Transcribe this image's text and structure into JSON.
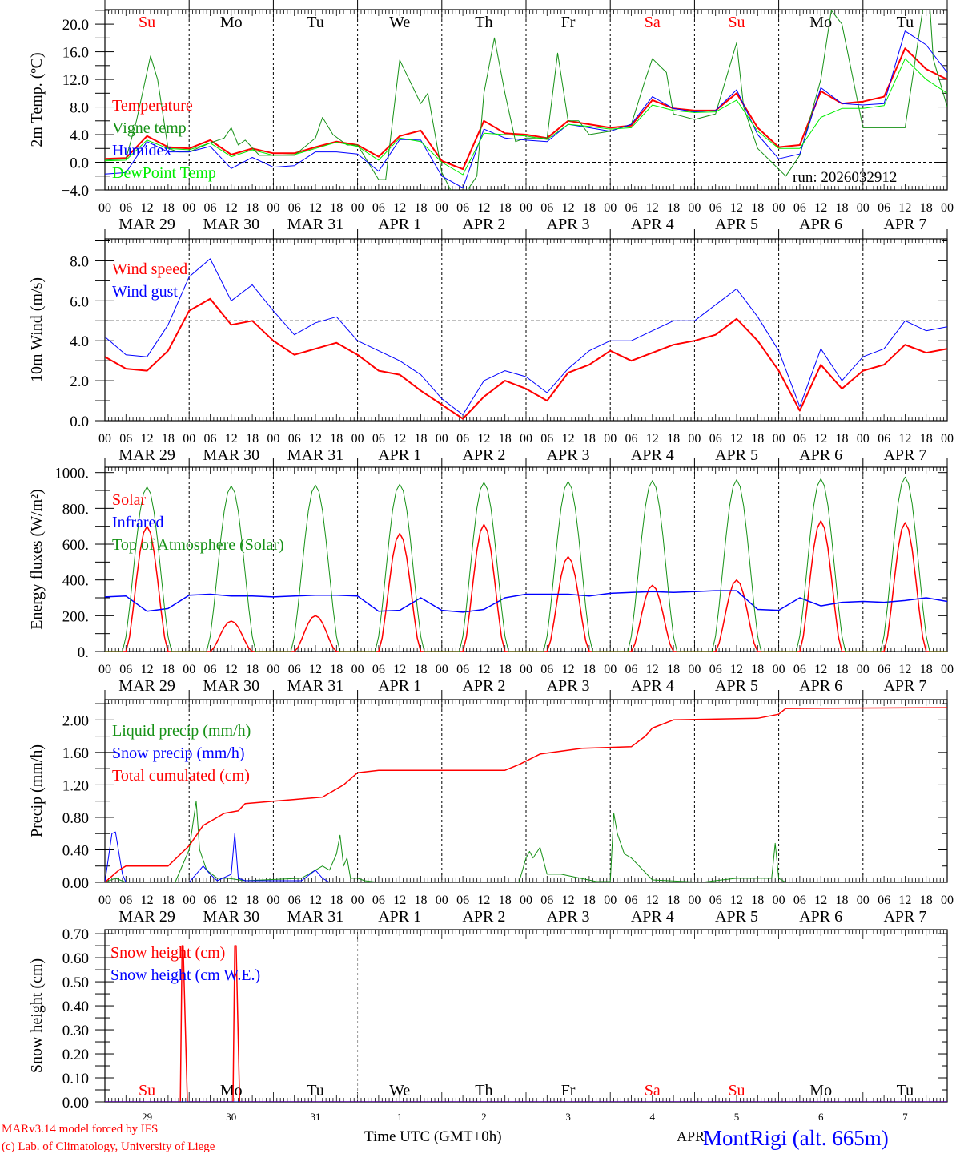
{
  "footer": {
    "model": "MARv3.14 model forced by IFS",
    "credit": "(c) Lab. of Climatology, University of Liege",
    "xlabel": "Time UTC (GMT+0h)",
    "month": "APR",
    "station": "MontRigi (alt. 665m)",
    "run": "run: 2026032912"
  },
  "days": {
    "names": [
      "Su",
      "Mo",
      "Tu",
      "We",
      "Th",
      "Fr",
      "Sa",
      "Su",
      "Mo",
      "Tu"
    ],
    "weekend": [
      true,
      false,
      false,
      false,
      false,
      false,
      true,
      true,
      false,
      false
    ],
    "dates": [
      "MAR 29",
      "MAR 30",
      "MAR 31",
      "APR  1",
      "APR  2",
      "APR  3",
      "APR  4",
      "APR  5",
      "APR  6",
      "APR  7"
    ],
    "day_numbers": [
      "29",
      "30",
      "31",
      "1",
      "2",
      "3",
      "4",
      "5",
      "6",
      "7"
    ],
    "hours": [
      "00",
      "06",
      "12",
      "18"
    ],
    "end_hour": "00"
  },
  "colors": {
    "red": "#ff0000",
    "darkgreen": "#169116",
    "blue": "#0000ff",
    "lightgreen": "#00ee00"
  },
  "chart_data": [
    {
      "type": "line",
      "ylabel": "2m Temp. (ºC)",
      "ylim": [
        -4,
        22.1
      ],
      "xlim_hours": [
        0,
        240
      ],
      "yticks": [
        -4,
        0,
        4,
        8,
        12,
        16,
        20
      ],
      "ytick_labels": [
        "−4.0",
        "0.0",
        "4.0",
        "8.0",
        "12.0",
        "16.0",
        "20.0"
      ],
      "yminor": 2,
      "hline": 0,
      "series": [
        {
          "name": "Temperature",
          "color": "#ff0000",
          "width": 2,
          "step_hours": 6,
          "values": [
            0.5,
            0.6,
            3.8,
            2.2,
            2.0,
            3.2,
            1.1,
            2.0,
            1.3,
            1.3,
            2.2,
            3.0,
            2.5,
            0.8,
            3.8,
            4.6,
            0.2,
            -1.0,
            6.0,
            4.2,
            4.0,
            3.5,
            6.0,
            5.5,
            5.0,
            5.3,
            9.0,
            7.8,
            7.5,
            7.5,
            10.0,
            5.0,
            2.2,
            2.5,
            10.3,
            8.5,
            8.8,
            9.5,
            16.5,
            13.5,
            12.0
          ]
        },
        {
          "name": "Vigne temp",
          "color": "#169116",
          "width": 1,
          "x": [
            0,
            6,
            9,
            13,
            15,
            18,
            21,
            24,
            30,
            34,
            36,
            38,
            40,
            44,
            48,
            54,
            60,
            62,
            65,
            69,
            72,
            78,
            80,
            84,
            90,
            92,
            96,
            99,
            102,
            106,
            108,
            111,
            114,
            117,
            120,
            126,
            129,
            132,
            135,
            138,
            144,
            150,
            154,
            156,
            160,
            162,
            168,
            174,
            180,
            182,
            186,
            190,
            194,
            198,
            204,
            207,
            210,
            216,
            222,
            228,
            233,
            235,
            236,
            240
          ],
          "y": [
            0.3,
            0.5,
            6,
            15.4,
            12,
            2,
            1.5,
            1.5,
            2.8,
            3.5,
            5,
            2.5,
            3.2,
            1,
            1,
            1,
            3.5,
            6.5,
            4,
            2.5,
            2.5,
            -2.5,
            -2.5,
            14.8,
            8.5,
            10,
            -1.5,
            -4.5,
            -5.0,
            -2.0,
            10,
            18,
            10,
            3.0,
            3.5,
            3.5,
            15.8,
            6,
            6,
            4,
            4.5,
            5.5,
            12,
            15,
            13,
            7,
            6.2,
            7.0,
            17.3,
            8,
            2,
            0,
            -2,
            1.0,
            12,
            22,
            20,
            5,
            5,
            5,
            22,
            23,
            15,
            8
          ]
        },
        {
          "name": "Humidex",
          "color": "#0000ff",
          "width": 1,
          "step_hours": 6,
          "values": [
            -1.7,
            -1.5,
            3.0,
            1.5,
            1.5,
            2.3,
            -0.9,
            0.7,
            -0.7,
            -0.5,
            1.5,
            1.5,
            1.2,
            -1.3,
            3.3,
            3.2,
            -2.0,
            -3.7,
            4.8,
            3.5,
            3.2,
            3.0,
            5.5,
            5.0,
            4.5,
            5.5,
            9.5,
            7.8,
            7.3,
            7.5,
            10.5,
            4.0,
            0.5,
            1.2,
            10.8,
            8.5,
            8.3,
            8.5,
            19.0,
            17.0,
            13.0
          ]
        },
        {
          "name": "DewPoint Temp",
          "color": "#00ee00",
          "width": 1,
          "step_hours": 6,
          "values": [
            0.2,
            0.3,
            3.2,
            2.0,
            1.8,
            2.8,
            0.8,
            1.8,
            1.0,
            1.1,
            2.0,
            2.9,
            2.3,
            0.3,
            3.5,
            3.0,
            0.0,
            -1.8,
            4.2,
            4.0,
            3.8,
            3.3,
            5.5,
            5.2,
            4.8,
            5.0,
            8.3,
            7.5,
            7.2,
            7.3,
            9.0,
            4.5,
            2.0,
            2.0,
            6.5,
            7.8,
            7.8,
            8.2,
            15.0,
            12.0,
            10.0
          ]
        }
      ]
    },
    {
      "type": "line",
      "ylabel": "10m Wind (m/s)",
      "ylim": [
        0,
        9.1
      ],
      "xlim_hours": [
        0,
        240
      ],
      "yticks": [
        0,
        2,
        4,
        6,
        8
      ],
      "ytick_labels": [
        "0.0",
        "2.0",
        "4.0",
        "6.0",
        "8.0"
      ],
      "yminor": 1,
      "hline": 5,
      "series": [
        {
          "name": "Wind speed",
          "color": "#ff0000",
          "width": 2,
          "step_hours": 6,
          "values": [
            3.2,
            2.6,
            2.5,
            3.5,
            5.5,
            6.1,
            4.8,
            5.0,
            4.0,
            3.3,
            3.6,
            3.9,
            3.3,
            2.5,
            2.3,
            1.5,
            0.8,
            0.1,
            1.2,
            2.0,
            1.6,
            1.0,
            2.4,
            2.8,
            3.5,
            3.0,
            3.4,
            3.8,
            4.0,
            4.3,
            5.1,
            4.0,
            2.5,
            0.5,
            2.8,
            1.6,
            2.5,
            2.8,
            3.8,
            3.4,
            3.6
          ]
        },
        {
          "name": "Wind gust",
          "color": "#0000ff",
          "width": 1,
          "step_hours": 6,
          "values": [
            4.2,
            3.3,
            3.2,
            4.8,
            7.2,
            8.1,
            6.0,
            6.8,
            5.5,
            4.3,
            4.9,
            5.2,
            4.0,
            3.5,
            3.0,
            2.3,
            1.1,
            0.3,
            2.0,
            2.5,
            2.2,
            1.4,
            2.6,
            3.5,
            4.0,
            4.0,
            4.5,
            5.0,
            5.0,
            5.8,
            6.6,
            5.2,
            3.5,
            0.7,
            3.6,
            2.0,
            3.2,
            3.6,
            5.0,
            4.5,
            4.7
          ]
        }
      ]
    },
    {
      "type": "line",
      "ylabel": "Energy fluxes (W/m²)",
      "ylim": [
        0,
        1030
      ],
      "xlim_hours": [
        0,
        240
      ],
      "yticks": [
        0,
        200,
        400,
        600,
        800,
        1000
      ],
      "ytick_labels": [
        "0.",
        "200.",
        "400.",
        "600.",
        "800.",
        "1000."
      ],
      "yminor": 100,
      "series": [
        {
          "name": "Solar",
          "color": "#ff0000",
          "width": 1.5,
          "daylight_hours": [
            6,
            18
          ],
          "daily_peak": [
            700,
            170,
            200,
            660,
            710,
            530,
            370,
            400,
            730,
            720
          ]
        },
        {
          "name": "Infrared",
          "color": "#0000ff",
          "width": 1.5,
          "step_hours": 6,
          "values": [
            305,
            310,
            225,
            240,
            315,
            320,
            310,
            310,
            305,
            310,
            315,
            315,
            310,
            225,
            230,
            300,
            230,
            220,
            235,
            300,
            320,
            320,
            320,
            310,
            325,
            330,
            335,
            330,
            335,
            340,
            340,
            235,
            230,
            300,
            255,
            275,
            280,
            275,
            285,
            300,
            280
          ]
        },
        {
          "name": "Top of Atmosphere (Solar)",
          "color": "#169116",
          "width": 1,
          "daylight_hours": [
            5,
            19
          ],
          "daily_peak": [
            920,
            925,
            930,
            935,
            945,
            950,
            955,
            960,
            965,
            975
          ]
        }
      ]
    },
    {
      "type": "line",
      "ylabel": "Precip (mm/h)",
      "ylim": [
        0,
        2.25
      ],
      "xlim_hours": [
        0,
        240
      ],
      "yticks": [
        0,
        0.4,
        0.8,
        1.2,
        1.6,
        2.0
      ],
      "ytick_labels": [
        "0.00",
        "0.40",
        "0.80",
        "1.20",
        "1.60",
        "2.00"
      ],
      "yminor": 0.2,
      "series": [
        {
          "name": "Liquid precip (mm/h)",
          "color": "#169116",
          "width": 1,
          "x": [
            0,
            3,
            6,
            20,
            24,
            26,
            27,
            29,
            32,
            35,
            40,
            56,
            62,
            64,
            66,
            67,
            68,
            69,
            70,
            72,
            74,
            78,
            118,
            120,
            121,
            122,
            124,
            126,
            130,
            140,
            144,
            145,
            146,
            148,
            150,
            156,
            170,
            180,
            186,
            190,
            191,
            192,
            194,
            200,
            240
          ],
          "y": [
            0,
            0.05,
            0,
            0,
            0.4,
            1.0,
            0.4,
            0.15,
            0.05,
            0.05,
            0.02,
            0.05,
            0.2,
            0.15,
            0.35,
            0.58,
            0.2,
            0.3,
            0.05,
            0.05,
            0.02,
            0,
            0,
            0.3,
            0.38,
            0.3,
            0.43,
            0.1,
            0.1,
            0.01,
            0.01,
            0.85,
            0.6,
            0.35,
            0.3,
            0.03,
            0,
            0.05,
            0.05,
            0.05,
            0.48,
            0.05,
            0,
            0,
            0
          ]
        },
        {
          "name": "Snow precip (mm/h)",
          "color": "#0000ff",
          "width": 1,
          "x": [
            0,
            2,
            3,
            5,
            6,
            24,
            28,
            30,
            32,
            36,
            37,
            38,
            40,
            56,
            60,
            62,
            64,
            72,
            240
          ],
          "y": [
            0,
            0.6,
            0.62,
            0.1,
            0,
            0,
            0.2,
            0.1,
            0.02,
            0.1,
            0.6,
            0.05,
            0.02,
            0.02,
            0.15,
            0.05,
            0,
            0,
            0
          ]
        },
        {
          "name": "Total cumulated (cm)",
          "color": "#ff0000",
          "width": 1.5,
          "x": [
            0,
            4,
            6,
            18,
            24,
            28,
            30,
            34,
            38,
            40,
            48,
            54,
            62,
            66,
            68,
            72,
            78,
            114,
            118,
            124,
            136,
            150,
            154,
            156,
            162,
            186,
            192,
            194,
            240
          ],
          "y": [
            0,
            0.15,
            0.2,
            0.2,
            0.45,
            0.7,
            0.75,
            0.85,
            0.88,
            0.97,
            1.0,
            1.02,
            1.05,
            1.15,
            1.2,
            1.35,
            1.38,
            1.38,
            1.45,
            1.58,
            1.65,
            1.67,
            1.8,
            1.9,
            2.0,
            2.02,
            2.07,
            2.14,
            2.15
          ]
        }
      ]
    },
    {
      "type": "line",
      "ylabel": "Snow height (cm)",
      "ylim": [
        0,
        0.717
      ],
      "xlim_hours": [
        0,
        240
      ],
      "yticks": [
        0,
        0.1,
        0.2,
        0.3,
        0.4,
        0.5,
        0.6,
        0.7
      ],
      "ytick_labels": [
        "0.00",
        "0.10",
        "0.20",
        "0.30",
        "0.40",
        "0.50",
        "0.60",
        "0.70"
      ],
      "yminor": 0.05,
      "series": [
        {
          "name": "Snow height (cm)",
          "color": "#ff0000",
          "width": 1.5,
          "x": [
            0,
            21.5,
            22,
            22.3,
            23.5,
            36.5,
            37,
            37.4,
            38.4,
            240
          ],
          "y": [
            0,
            0,
            0.65,
            0.65,
            0,
            0,
            0.65,
            0.65,
            0,
            0
          ]
        },
        {
          "name": "Snow height (cm W.E.)",
          "color": "#0000ff",
          "width": 1,
          "x": [
            0,
            240
          ],
          "y": [
            0,
            0
          ]
        }
      ]
    }
  ]
}
